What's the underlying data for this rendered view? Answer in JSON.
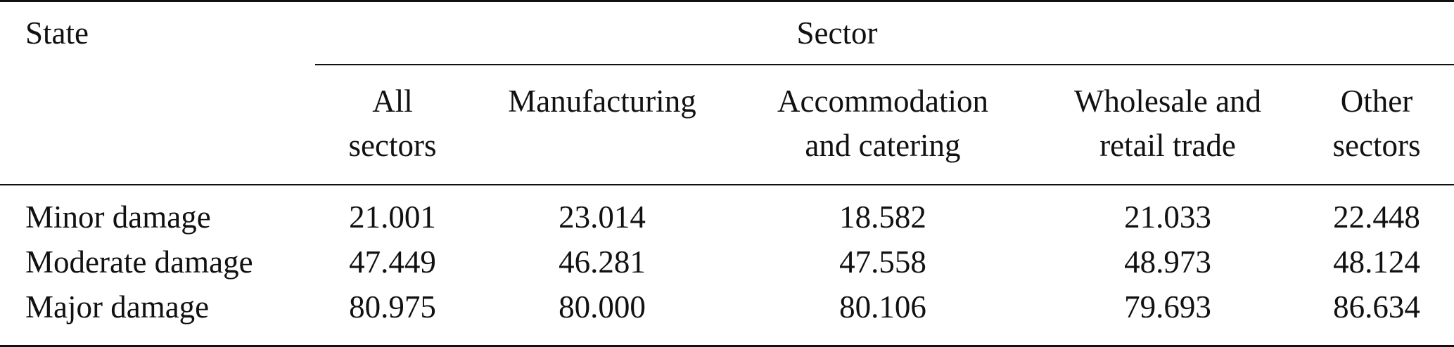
{
  "table": {
    "state_header": "State",
    "sector_header": "Sector",
    "columns": [
      {
        "line1": "All",
        "line2": "sectors"
      },
      {
        "line1": "Manufacturing",
        "line2": ""
      },
      {
        "line1": "Accommodation",
        "line2": "and catering"
      },
      {
        "line1": "Wholesale and",
        "line2": "retail trade"
      },
      {
        "line1": "Other",
        "line2": "sectors"
      }
    ],
    "rows": [
      {
        "label": "Minor damage",
        "values": [
          "21.001",
          "23.014",
          "18.582",
          "21.033",
          "22.448"
        ]
      },
      {
        "label": "Moderate damage",
        "values": [
          "47.449",
          "46.281",
          "47.558",
          "48.973",
          "48.124"
        ]
      },
      {
        "label": "Major damage",
        "values": [
          "80.975",
          "80.000",
          "80.106",
          "79.693",
          "86.634"
        ]
      }
    ]
  }
}
